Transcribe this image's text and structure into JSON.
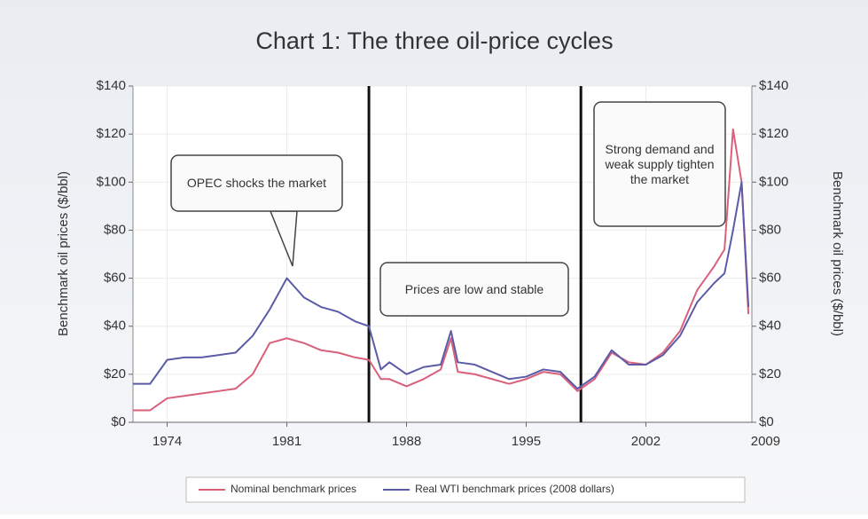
{
  "chart_data": {
    "type": "line",
    "title": "Chart 1: The three oil-price cycles",
    "y_label": "Benchmark oil prices ($/bbl)",
    "y2_label": "Benchmark oil prices ($/bbl)",
    "x": [
      1972,
      1973,
      1974,
      1975,
      1976,
      1977,
      1978,
      1979,
      1980,
      1981,
      1982,
      1983,
      1984,
      1985,
      1985.8,
      1986.5,
      1987,
      1988,
      1989,
      1990,
      1990.6,
      1991,
      1992,
      1993,
      1994,
      1995,
      1996,
      1997,
      1998,
      1999,
      2000,
      2001,
      2002,
      2003,
      2004,
      2005,
      2006,
      2006.6,
      2007.1,
      2007.6,
      2008
    ],
    "series": [
      {
        "name": "Nominal benchmark prices",
        "color": "#d9607a",
        "values": [
          5,
          5,
          10,
          11,
          12,
          13,
          14,
          20,
          33,
          35,
          33,
          30,
          29,
          27,
          26,
          18,
          18,
          15,
          18,
          22,
          35,
          21,
          20,
          18,
          16,
          18,
          21,
          20,
          13,
          18,
          29,
          25,
          24,
          29,
          38,
          55,
          65,
          72,
          122,
          100,
          45
        ]
      },
      {
        "name": "Real WTI benchmark prices (2008 dollars)",
        "color": "#5b5ba8",
        "values": [
          16,
          16,
          26,
          27,
          27,
          28,
          29,
          36,
          47,
          60,
          52,
          48,
          46,
          42,
          40,
          22,
          25,
          20,
          23,
          24,
          38,
          25,
          24,
          21,
          18,
          19,
          22,
          21,
          14,
          19,
          30,
          24,
          24,
          28,
          36,
          50,
          58,
          62,
          80,
          100,
          48
        ]
      }
    ],
    "xlim": [
      1972,
      2008.2
    ],
    "xticks": [
      1974,
      1981,
      1988,
      1995,
      2002,
      2009
    ],
    "ylim": [
      0,
      140
    ],
    "yticks": [
      {
        "value": 0,
        "label": "$0"
      },
      {
        "value": 20,
        "label": "$20"
      },
      {
        "value": 40,
        "label": "$40"
      },
      {
        "value": 60,
        "label": "$60"
      },
      {
        "value": 80,
        "label": "$80"
      },
      {
        "value": 100,
        "label": "$100"
      },
      {
        "value": 120,
        "label": "$120"
      },
      {
        "value": 140,
        "label": "$140"
      }
    ],
    "y2lim": [
      0,
      140
    ],
    "y2ticks": [
      {
        "value": 0,
        "label": "$0"
      },
      {
        "value": 20,
        "label": "$20"
      },
      {
        "value": 40,
        "label": "$40"
      },
      {
        "value": 60,
        "label": "$60"
      },
      {
        "value": 80,
        "label": "$80"
      },
      {
        "value": 100,
        "label": "$100"
      },
      {
        "value": 120,
        "label": "$120"
      },
      {
        "value": 140,
        "label": "$140"
      }
    ],
    "vlines": [
      1985.8,
      1998.2
    ],
    "annotations": [
      "OPEC shocks the market",
      "Prices are low and stable",
      "Strong demand and weak supply tighten the market"
    ],
    "grid": true,
    "legend": "bottom"
  }
}
